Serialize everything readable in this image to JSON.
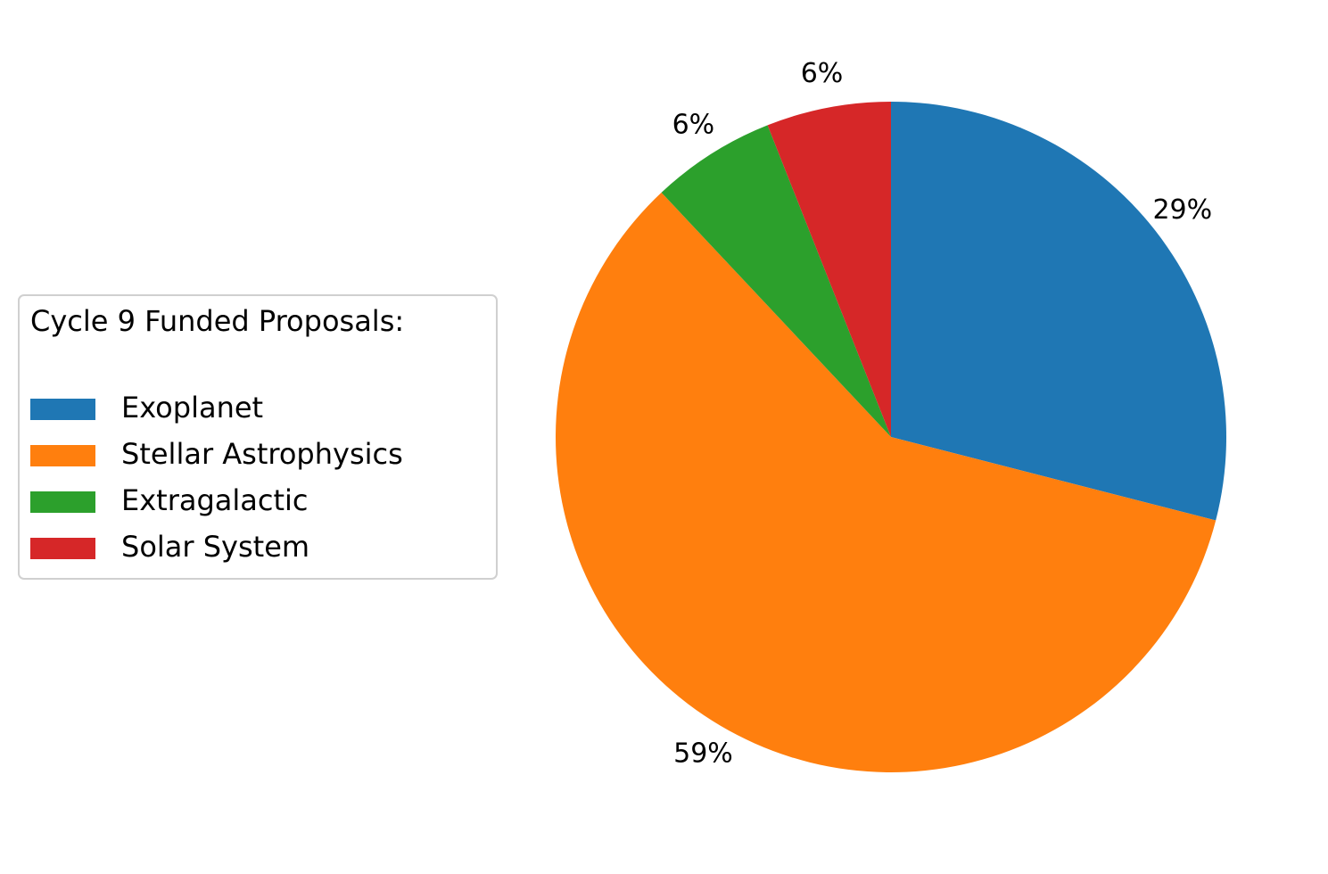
{
  "chart_data": {
    "type": "pie",
    "legend_title": "Cycle 9 Funded Proposals:",
    "categories": [
      "Exoplanet",
      "Stellar Astrophysics",
      "Extragalactic",
      "Solar System"
    ],
    "values": [
      29,
      59,
      6,
      6
    ],
    "value_labels": [
      "29%",
      "59%",
      "6%",
      "6%"
    ],
    "colors": [
      "#1f77b4",
      "#ff7f0e",
      "#2ca02c",
      "#d62728"
    ],
    "legend": "left"
  }
}
